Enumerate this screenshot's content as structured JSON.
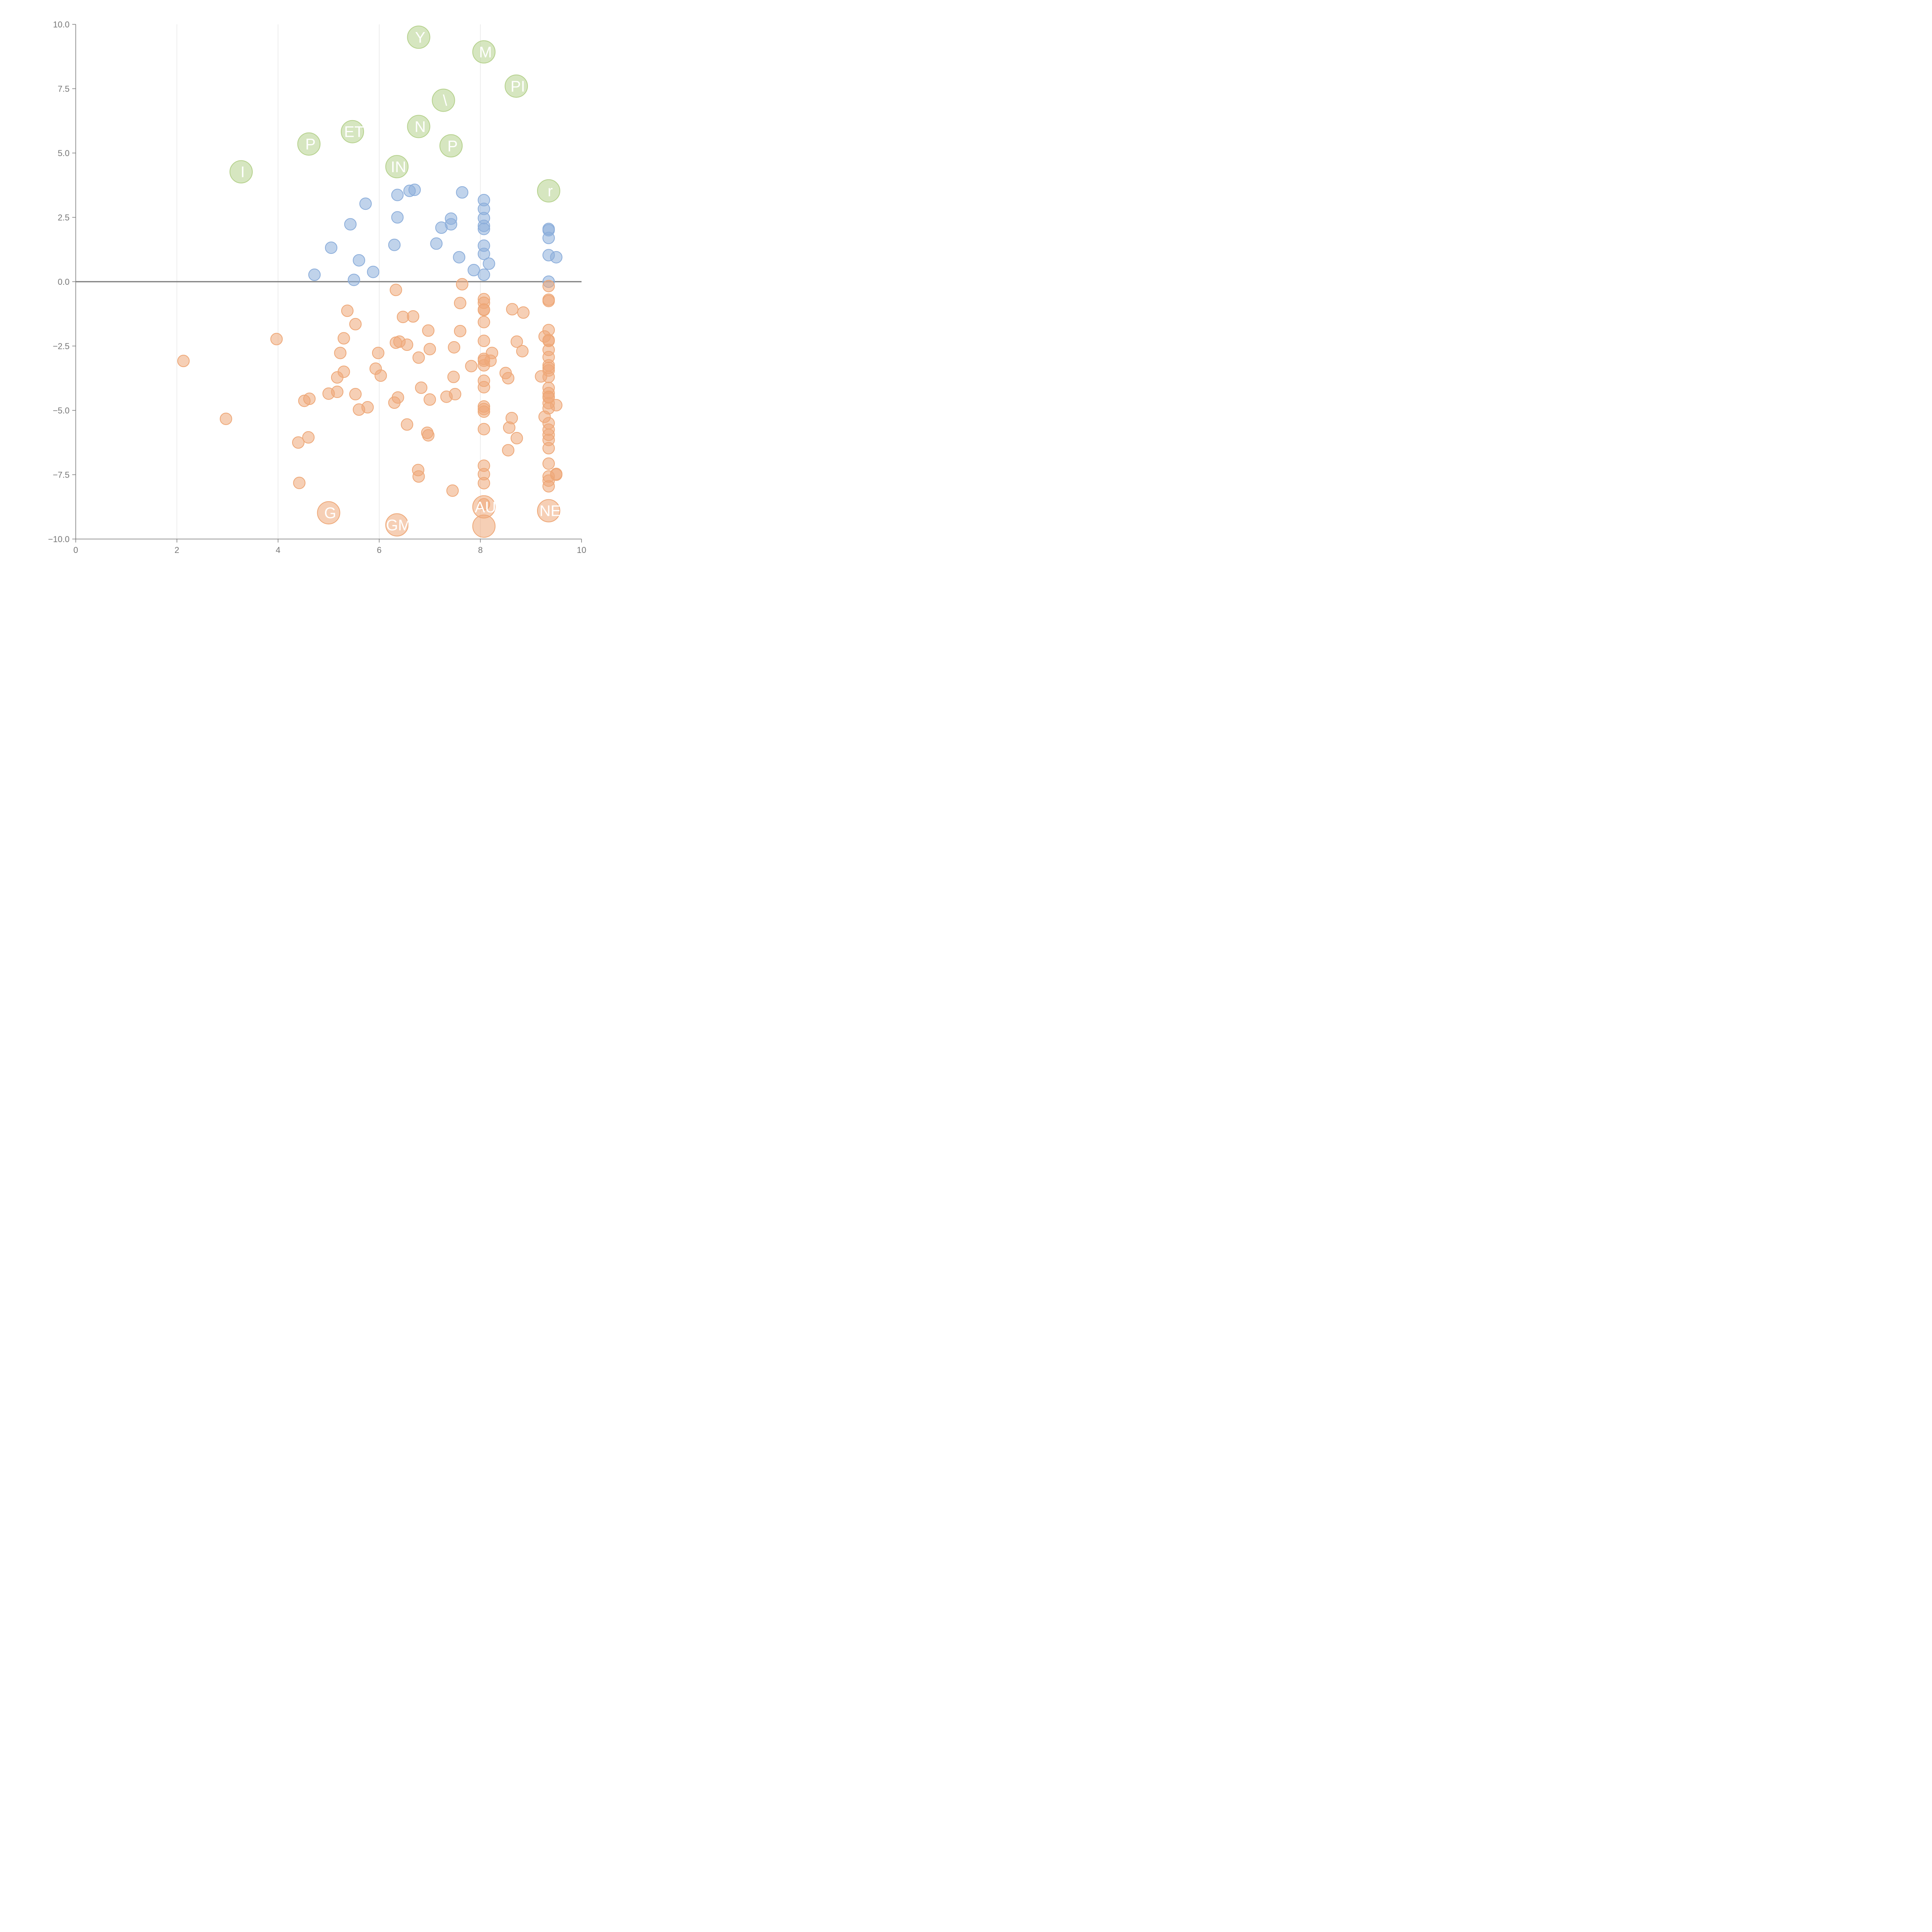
{
  "chart_data": {
    "type": "scatter",
    "title": "",
    "xlabel": "",
    "ylabel": "",
    "xlim": [
      0,
      10
    ],
    "ylim": [
      -10,
      10
    ],
    "x_ticks": [
      "0",
      "2",
      "4",
      "6",
      "8",
      "10"
    ],
    "y_ticks": [
      "10.0",
      "7.5",
      "5.0",
      "2.5",
      "0.0",
      "−2.5",
      "−5.0",
      "−7.5",
      "−10.0"
    ],
    "vertical_grid": true,
    "zero_line": true,
    "colors": {
      "green": "#b5d18c",
      "blue": "#8caedb",
      "orange": "#eea878"
    },
    "series": [
      {
        "color": "#b5d18c",
        "points": [
          {
            "x": 6.78,
            "y": 9.5,
            "label": "Y"
          },
          {
            "x": 8.07,
            "y": 8.93,
            "label": "M"
          },
          {
            "x": 8.71,
            "y": 7.6,
            "label": "PI"
          },
          {
            "x": 7.27,
            "y": 7.05,
            "label": "\\"
          },
          {
            "x": 6.78,
            "y": 6.03,
            "label": "N"
          },
          {
            "x": 5.47,
            "y": 5.83,
            "label": "ET"
          },
          {
            "x": 4.61,
            "y": 5.35,
            "label": "P"
          },
          {
            "x": 7.42,
            "y": 5.28,
            "label": "P"
          },
          {
            "x": 6.35,
            "y": 4.47,
            "label": "IN"
          },
          {
            "x": 3.27,
            "y": 4.27,
            "label": "I"
          },
          {
            "x": 9.35,
            "y": 3.53,
            "label": "r"
          }
        ]
      },
      {
        "color": "#8caedb",
        "points": [
          {
            "x": 6.6,
            "y": 3.53
          },
          {
            "x": 6.7,
            "y": 3.57
          },
          {
            "x": 7.64,
            "y": 3.47
          },
          {
            "x": 6.36,
            "y": 3.37
          },
          {
            "x": 5.73,
            "y": 3.03
          },
          {
            "x": 8.07,
            "y": 3.17
          },
          {
            "x": 8.07,
            "y": 2.83
          },
          {
            "x": 6.36,
            "y": 2.5
          },
          {
            "x": 7.42,
            "y": 2.45
          },
          {
            "x": 8.07,
            "y": 2.47
          },
          {
            "x": 5.43,
            "y": 2.23
          },
          {
            "x": 7.42,
            "y": 2.23
          },
          {
            "x": 7.23,
            "y": 2.1
          },
          {
            "x": 8.07,
            "y": 2.17
          },
          {
            "x": 8.07,
            "y": 2.05
          },
          {
            "x": 9.35,
            "y": 2.05
          },
          {
            "x": 9.35,
            "y": 2.0
          },
          {
            "x": 9.35,
            "y": 1.7
          },
          {
            "x": 7.13,
            "y": 1.48
          },
          {
            "x": 6.3,
            "y": 1.43
          },
          {
            "x": 8.07,
            "y": 1.4
          },
          {
            "x": 5.05,
            "y": 1.32
          },
          {
            "x": 8.07,
            "y": 1.08
          },
          {
            "x": 9.35,
            "y": 1.03
          },
          {
            "x": 7.58,
            "y": 0.95
          },
          {
            "x": 9.5,
            "y": 0.95
          },
          {
            "x": 5.6,
            "y": 0.83
          },
          {
            "x": 8.17,
            "y": 0.7
          },
          {
            "x": 7.87,
            "y": 0.45
          },
          {
            "x": 5.88,
            "y": 0.38
          },
          {
            "x": 4.72,
            "y": 0.27
          },
          {
            "x": 8.07,
            "y": 0.27
          },
          {
            "x": 5.5,
            "y": 0.07
          },
          {
            "x": 9.35,
            "y": 0.0
          }
        ]
      },
      {
        "color": "#eea878",
        "points": [
          {
            "x": 7.64,
            "y": -0.1
          },
          {
            "x": 9.35,
            "y": -0.17
          },
          {
            "x": 6.33,
            "y": -0.32
          },
          {
            "x": 8.07,
            "y": -0.68
          },
          {
            "x": 9.35,
            "y": -0.7
          },
          {
            "x": 9.35,
            "y": -0.75
          },
          {
            "x": 8.07,
            "y": -0.82
          },
          {
            "x": 7.6,
            "y": -0.83
          },
          {
            "x": 8.07,
            "y": -1.08
          },
          {
            "x": 8.07,
            "y": -1.1
          },
          {
            "x": 8.63,
            "y": -1.07
          },
          {
            "x": 5.37,
            "y": -1.13
          },
          {
            "x": 8.85,
            "y": -1.2
          },
          {
            "x": 6.47,
            "y": -1.37
          },
          {
            "x": 6.67,
            "y": -1.35
          },
          {
            "x": 5.53,
            "y": -1.65
          },
          {
            "x": 8.07,
            "y": -1.57
          },
          {
            "x": 6.97,
            "y": -1.9
          },
          {
            "x": 7.6,
            "y": -1.92
          },
          {
            "x": 9.35,
            "y": -1.88
          },
          {
            "x": 9.27,
            "y": -2.13
          },
          {
            "x": 5.3,
            "y": -2.2
          },
          {
            "x": 3.97,
            "y": -2.23
          },
          {
            "x": 8.07,
            "y": -2.3
          },
          {
            "x": 9.35,
            "y": -2.27
          },
          {
            "x": 9.35,
            "y": -2.3
          },
          {
            "x": 6.33,
            "y": -2.37
          },
          {
            "x": 6.4,
            "y": -2.33
          },
          {
            "x": 6.55,
            "y": -2.45
          },
          {
            "x": 8.72,
            "y": -2.33
          },
          {
            "x": 7.48,
            "y": -2.55
          },
          {
            "x": 7.0,
            "y": -2.62
          },
          {
            "x": 8.83,
            "y": -2.7
          },
          {
            "x": 9.35,
            "y": -2.65
          },
          {
            "x": 5.23,
            "y": -2.77
          },
          {
            "x": 5.98,
            "y": -2.77
          },
          {
            "x": 8.23,
            "y": -2.77
          },
          {
            "x": 9.35,
            "y": -2.93
          },
          {
            "x": 6.78,
            "y": -2.95
          },
          {
            "x": 8.07,
            "y": -3.0
          },
          {
            "x": 8.07,
            "y": -3.07
          },
          {
            "x": 8.2,
            "y": -3.07
          },
          {
            "x": 2.13,
            "y": -3.08
          },
          {
            "x": 8.07,
            "y": -3.25
          },
          {
            "x": 9.35,
            "y": -3.25
          },
          {
            "x": 7.82,
            "y": -3.28
          },
          {
            "x": 9.35,
            "y": -3.35
          },
          {
            "x": 5.93,
            "y": -3.38
          },
          {
            "x": 9.35,
            "y": -3.45
          },
          {
            "x": 5.3,
            "y": -3.5
          },
          {
            "x": 8.5,
            "y": -3.55
          },
          {
            "x": 6.03,
            "y": -3.65
          },
          {
            "x": 7.47,
            "y": -3.7
          },
          {
            "x": 9.2,
            "y": -3.68
          },
          {
            "x": 9.35,
            "y": -3.7
          },
          {
            "x": 5.17,
            "y": -3.72
          },
          {
            "x": 8.55,
            "y": -3.75
          },
          {
            "x": 8.07,
            "y": -3.85
          },
          {
            "x": 8.07,
            "y": -4.1
          },
          {
            "x": 6.83,
            "y": -4.12
          },
          {
            "x": 9.35,
            "y": -4.13
          },
          {
            "x": 9.35,
            "y": -4.33
          },
          {
            "x": 5.17,
            "y": -4.28
          },
          {
            "x": 5.0,
            "y": -4.35
          },
          {
            "x": 5.53,
            "y": -4.37
          },
          {
            "x": 7.5,
            "y": -4.37
          },
          {
            "x": 9.35,
            "y": -4.47
          },
          {
            "x": 7.33,
            "y": -4.47
          },
          {
            "x": 6.37,
            "y": -4.5
          },
          {
            "x": 9.35,
            "y": -4.5
          },
          {
            "x": 4.62,
            "y": -4.55
          },
          {
            "x": 7.0,
            "y": -4.58
          },
          {
            "x": 4.52,
            "y": -4.63
          },
          {
            "x": 6.3,
            "y": -4.7
          },
          {
            "x": 9.35,
            "y": -4.72
          },
          {
            "x": 9.5,
            "y": -4.8
          },
          {
            "x": 8.07,
            "y": -4.85
          },
          {
            "x": 5.77,
            "y": -4.88
          },
          {
            "x": 9.35,
            "y": -4.92
          },
          {
            "x": 8.07,
            "y": -4.95
          },
          {
            "x": 5.6,
            "y": -4.97
          },
          {
            "x": 8.07,
            "y": -5.05
          },
          {
            "x": 9.27,
            "y": -5.25
          },
          {
            "x": 8.62,
            "y": -5.3
          },
          {
            "x": 2.97,
            "y": -5.33
          },
          {
            "x": 9.35,
            "y": -5.5
          },
          {
            "x": 6.55,
            "y": -5.55
          },
          {
            "x": 8.57,
            "y": -5.67
          },
          {
            "x": 8.07,
            "y": -5.73
          },
          {
            "x": 9.35,
            "y": -5.75
          },
          {
            "x": 6.95,
            "y": -5.87
          },
          {
            "x": 9.35,
            "y": -5.95
          },
          {
            "x": 6.97,
            "y": -5.97
          },
          {
            "x": 8.72,
            "y": -6.08
          },
          {
            "x": 4.6,
            "y": -6.05
          },
          {
            "x": 9.35,
            "y": -6.15
          },
          {
            "x": 4.4,
            "y": -6.25
          },
          {
            "x": 9.35,
            "y": -6.47
          },
          {
            "x": 8.55,
            "y": -6.55
          },
          {
            "x": 9.35,
            "y": -7.07
          },
          {
            "x": 8.07,
            "y": -7.15
          },
          {
            "x": 6.77,
            "y": -7.32
          },
          {
            "x": 9.5,
            "y": -7.47
          },
          {
            "x": 9.5,
            "y": -7.5
          },
          {
            "x": 8.07,
            "y": -7.48
          },
          {
            "x": 6.78,
            "y": -7.57
          },
          {
            "x": 9.35,
            "y": -7.57
          },
          {
            "x": 9.35,
            "y": -7.73
          },
          {
            "x": 4.42,
            "y": -7.82
          },
          {
            "x": 8.07,
            "y": -7.83
          },
          {
            "x": 9.35,
            "y": -7.95
          },
          {
            "x": 7.45,
            "y": -8.12
          },
          {
            "x": 8.07,
            "y": -8.65
          }
        ]
      },
      {
        "color": "#eea878",
        "points": [
          {
            "x": 8.07,
            "y": -8.75,
            "label": "AU"
          },
          {
            "x": 9.35,
            "y": -8.9,
            "label": "NE"
          },
          {
            "x": 5.0,
            "y": -8.98,
            "label": "G"
          },
          {
            "x": 6.35,
            "y": -9.45,
            "label": "GM"
          },
          {
            "x": 8.07,
            "y": -9.5,
            "label": ""
          }
        ]
      }
    ]
  }
}
